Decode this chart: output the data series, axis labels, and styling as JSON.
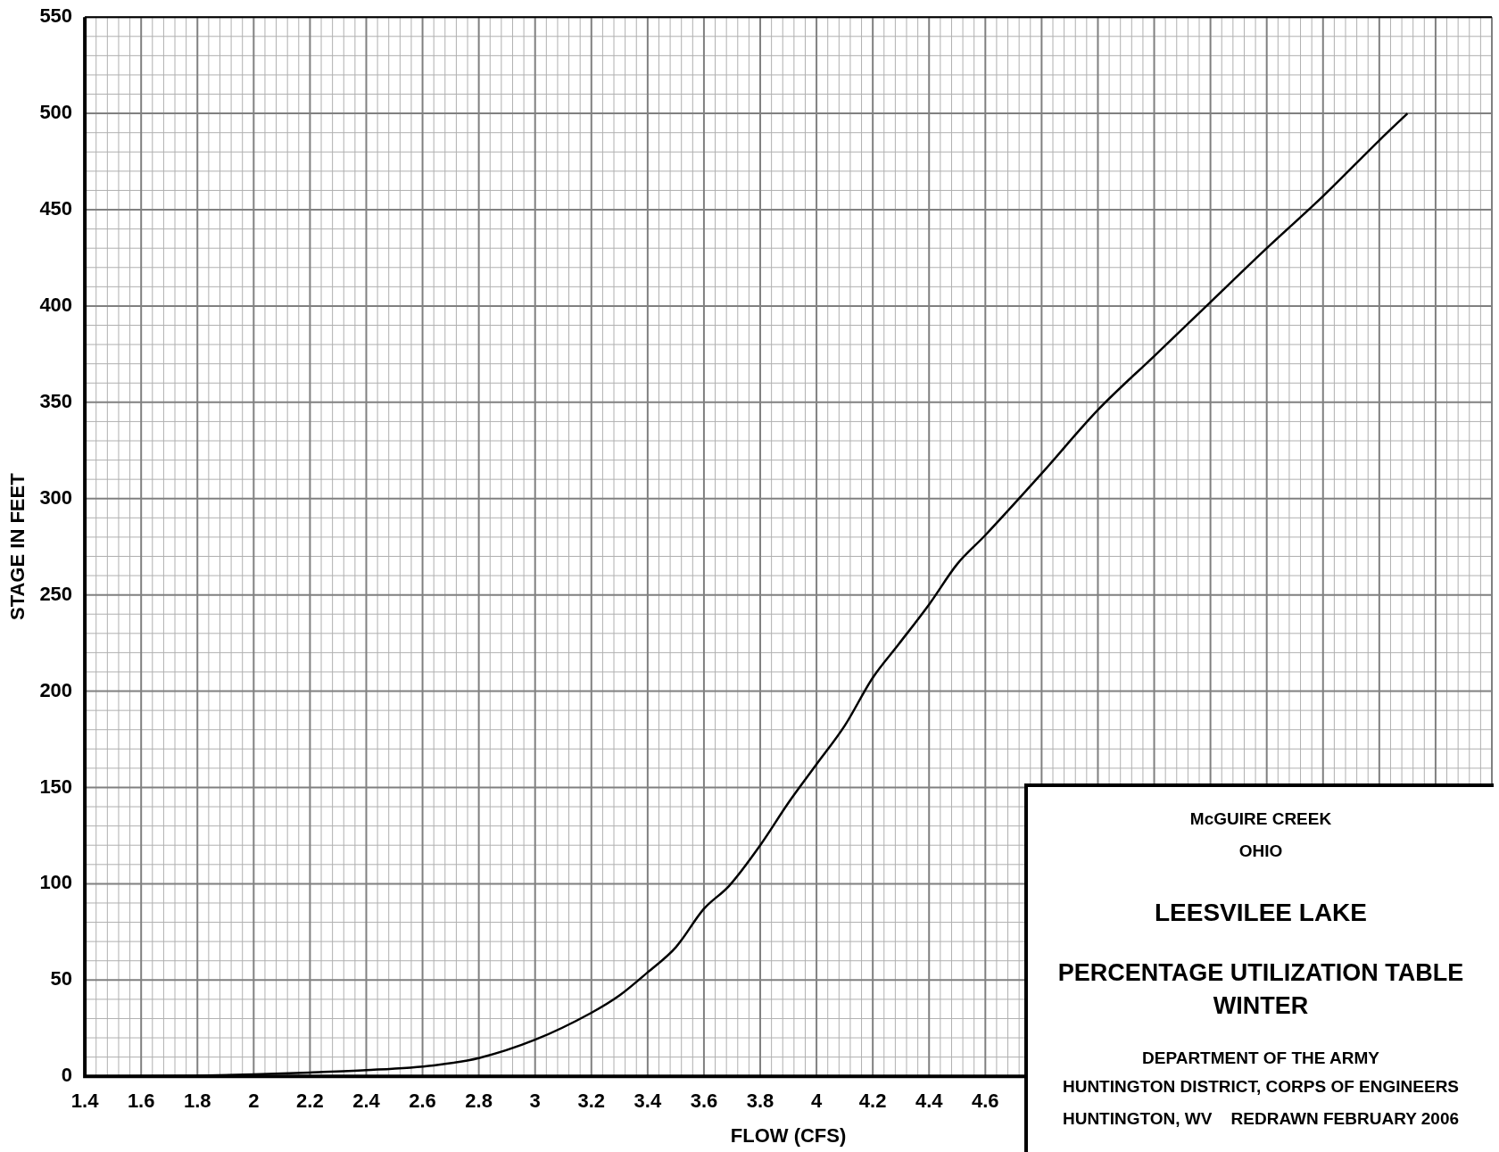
{
  "chart_data": {
    "type": "line",
    "xlabel": "FLOW (CFS)",
    "ylabel": "STAGE IN FEET",
    "xlim": [
      1.4,
      6.4
    ],
    "ylim": [
      0,
      550
    ],
    "xticks": [
      1.4,
      1.6,
      1.8,
      2,
      2.2,
      2.4,
      2.6,
      2.8,
      3,
      3.2,
      3.4,
      3.6,
      3.8,
      4,
      4.2,
      4.4,
      4.6,
      {
        "value": 4.8,
        "label": null
      },
      {
        "value": 5,
        "label": null
      },
      {
        "value": 5.2,
        "label": null
      },
      {
        "value": 5.4,
        "label": null
      },
      {
        "value": 5.6,
        "label": null
      },
      {
        "value": 5.8,
        "label": null
      },
      {
        "value": 6,
        "label": null
      },
      {
        "value": 6.2,
        "label": null
      },
      {
        "value": 6.4,
        "label": null
      }
    ],
    "yticks": [
      0,
      50,
      100,
      150,
      200,
      250,
      300,
      350,
      400,
      450,
      500,
      550
    ],
    "grid": true,
    "marker": "none",
    "line_style": "solid",
    "series": [
      {
        "color": "#000000",
        "x": [
          1.4,
          1.8,
          2.0,
          2.2,
          2.4,
          2.64,
          2.8,
          3.0,
          3.2,
          3.3,
          3.4,
          3.5,
          3.6,
          3.69,
          3.8,
          3.9,
          4.0,
          4.1,
          4.2,
          4.29,
          4.4,
          4.5,
          4.6,
          4.8,
          5.0,
          5.2,
          5.4,
          5.6,
          5.8,
          6.0,
          6.1
        ],
        "values": [
          0,
          0.3,
          1,
          2,
          3.2,
          5.7,
          9.5,
          19,
          33,
          42,
          54,
          67,
          87,
          99,
          120,
          142,
          162,
          182,
          207,
          224,
          245,
          266,
          281,
          313,
          346,
          374,
          402,
          430,
          457,
          486,
          500
        ]
      }
    ],
    "annotations": [
      "McGUIRE CREEK",
      "OHIO",
      "LEESVILEE LAKE",
      "PERCENTAGE UTILIZATION TABLE",
      "WINTER",
      "DEPARTMENT OF THE ARMY",
      "HUNTINGTON DISTRICT, CORPS OF ENGINEERS",
      "HUNTINGTON, WV    REDRAWN FEBRUARY 2006"
    ]
  }
}
